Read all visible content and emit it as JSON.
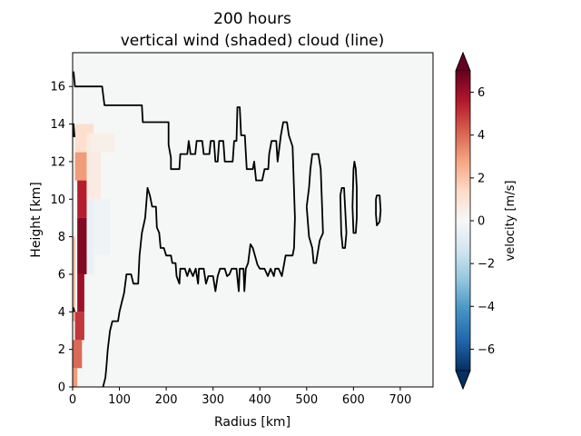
{
  "chart_data": {
    "type": "heatmap",
    "title": "200 hours",
    "subtitle": "vertical wind (shaded) cloud (line)",
    "xlabel": "Radius [km]",
    "ylabel": "Height [km]",
    "xlim": [
      0,
      770
    ],
    "ylim": [
      0,
      17.8
    ],
    "xticks": [
      0,
      100,
      200,
      300,
      400,
      500,
      600,
      700
    ],
    "yticks": [
      0,
      2,
      4,
      6,
      8,
      10,
      12,
      14,
      16
    ],
    "colorbar": {
      "label": "velocity [m/s]",
      "colormap": "RdBu_r",
      "range": [
        -7,
        7
      ],
      "ticks": [
        -6,
        -4,
        -2,
        0,
        2,
        4,
        6
      ],
      "tick_labels": [
        "−6",
        "−4",
        "−2",
        "0",
        "2",
        "4",
        "6"
      ],
      "extend": "both"
    },
    "shading_updraft": {
      "description_values_m_per_s": "strong updraft core near inner radius",
      "cells": [
        {
          "r": [
            0,
            10
          ],
          "z": [
            0.0,
            1.0
          ],
          "w": 3.0
        },
        {
          "r": [
            0,
            20
          ],
          "z": [
            1.0,
            2.5
          ],
          "w": 4.0
        },
        {
          "r": [
            5,
            25
          ],
          "z": [
            2.5,
            4.0
          ],
          "w": 5.0
        },
        {
          "r": [
            10,
            25
          ],
          "z": [
            4.0,
            6.0
          ],
          "w": 6.0
        },
        {
          "r": [
            10,
            30
          ],
          "z": [
            6.0,
            9.0
          ],
          "w": 6.5
        },
        {
          "r": [
            10,
            30
          ],
          "z": [
            9.0,
            11.0
          ],
          "w": 5.5
        },
        {
          "r": [
            5,
            35
          ],
          "z": [
            11.0,
            12.5
          ],
          "w": 3.0
        },
        {
          "r": [
            5,
            45
          ],
          "z": [
            12.5,
            14.0
          ],
          "w": 1.2
        },
        {
          "r": [
            30,
            60
          ],
          "z": [
            10.0,
            13.5
          ],
          "w": 0.6
        },
        {
          "r": [
            40,
            90
          ],
          "z": [
            12.5,
            13.5
          ],
          "w": 0.4
        },
        {
          "r": [
            0,
            5
          ],
          "z": [
            3.5,
            8.0
          ],
          "w": 2.5
        }
      ],
      "downdraft_cells": [
        {
          "r": [
            30,
            45
          ],
          "z": [
            6.0,
            10.5
          ],
          "w": -0.5
        },
        {
          "r": [
            45,
            80
          ],
          "z": [
            7.0,
            10.0
          ],
          "w": -0.3
        }
      ]
    },
    "cloud_contour_lines": [
      {
        "name": "outer cloud boundary",
        "points": [
          [
            2,
            16.8
          ],
          [
            5,
            16.0
          ],
          [
            63,
            16.0
          ],
          [
            68,
            15.0
          ],
          [
            148,
            15.0
          ],
          [
            150,
            14.1
          ],
          [
            205,
            14.1
          ],
          [
            205,
            12.9
          ],
          [
            210,
            12.2
          ],
          [
            210,
            11.6
          ],
          [
            228,
            11.6
          ],
          [
            230,
            12.4
          ],
          [
            245,
            12.4
          ],
          [
            248,
            13.1
          ],
          [
            252,
            12.4
          ],
          [
            262,
            12.4
          ],
          [
            265,
            13.1
          ],
          [
            277,
            13.1
          ],
          [
            280,
            12.4
          ],
          [
            292,
            12.4
          ],
          [
            295,
            13.1
          ],
          [
            302,
            13.1
          ],
          [
            305,
            12.0
          ],
          [
            310,
            12.0
          ],
          [
            313,
            13.1
          ],
          [
            322,
            13.1
          ],
          [
            325,
            12.0
          ],
          [
            342,
            12.0
          ],
          [
            345,
            13.1
          ],
          [
            350,
            13.1
          ],
          [
            352,
            14.9
          ],
          [
            357,
            14.9
          ],
          [
            360,
            13.4
          ],
          [
            368,
            13.4
          ],
          [
            372,
            11.6
          ],
          [
            385,
            11.6
          ],
          [
            388,
            12.0
          ],
          [
            392,
            11.0
          ],
          [
            405,
            11.0
          ],
          [
            410,
            11.6
          ],
          [
            418,
            11.6
          ],
          [
            420,
            12.4
          ],
          [
            425,
            13.1
          ],
          [
            435,
            13.1
          ],
          [
            438,
            12.0
          ],
          [
            445,
            13.4
          ],
          [
            450,
            14.1
          ],
          [
            458,
            14.1
          ],
          [
            462,
            13.4
          ],
          [
            470,
            12.8
          ],
          [
            475,
            9.0
          ],
          [
            473,
            7.4
          ],
          [
            470,
            7.0
          ],
          [
            455,
            7.0
          ],
          [
            450,
            6.3
          ],
          [
            447,
            5.9
          ],
          [
            440,
            6.3
          ],
          [
            433,
            6.3
          ],
          [
            430,
            5.9
          ],
          [
            423,
            6.3
          ],
          [
            417,
            5.9
          ],
          [
            410,
            6.3
          ],
          [
            400,
            6.3
          ],
          [
            395,
            6.5
          ],
          [
            385,
            7.4
          ],
          [
            380,
            7.6
          ],
          [
            375,
            6.6
          ],
          [
            370,
            6.3
          ],
          [
            367,
            5.1
          ],
          [
            365,
            6.3
          ],
          [
            357,
            6.3
          ],
          [
            355,
            5.1
          ],
          [
            350,
            6.3
          ],
          [
            340,
            6.3
          ],
          [
            335,
            6.0
          ],
          [
            330,
            5.9
          ],
          [
            325,
            6.3
          ],
          [
            315,
            6.3
          ],
          [
            310,
            5.9
          ],
          [
            305,
            5.1
          ],
          [
            300,
            5.9
          ],
          [
            290,
            5.9
          ],
          [
            285,
            5.5
          ],
          [
            280,
            6.3
          ],
          [
            270,
            6.3
          ],
          [
            268,
            5.5
          ],
          [
            263,
            6.3
          ],
          [
            257,
            5.9
          ],
          [
            250,
            6.3
          ],
          [
            245,
            5.9
          ],
          [
            240,
            6.3
          ],
          [
            230,
            6.3
          ],
          [
            228,
            5.5
          ],
          [
            222,
            5.9
          ],
          [
            220,
            6.6
          ],
          [
            213,
            6.6
          ],
          [
            210,
            7.0
          ],
          [
            200,
            7.0
          ],
          [
            195,
            7.4
          ],
          [
            188,
            7.4
          ],
          [
            185,
            8.2
          ],
          [
            180,
            8.5
          ],
          [
            178,
            9.6
          ],
          [
            170,
            9.6
          ],
          [
            165,
            10.2
          ],
          [
            160,
            10.6
          ],
          [
            157,
            9.6
          ],
          [
            155,
            9.0
          ],
          [
            148,
            8.2
          ],
          [
            143,
            7.0
          ],
          [
            140,
            5.5
          ],
          [
            130,
            5.5
          ],
          [
            125,
            6.0
          ],
          [
            115,
            6.0
          ],
          [
            110,
            5.0
          ],
          [
            105,
            4.5
          ],
          [
            100,
            4.0
          ],
          [
            97,
            3.5
          ],
          [
            85,
            3.5
          ],
          [
            80,
            3.0
          ],
          [
            75,
            2.0
          ],
          [
            72,
            1.0
          ],
          [
            70,
            0.5
          ],
          [
            65,
            0.0
          ]
        ]
      },
      {
        "name": "right cloud segment",
        "points": [
          [
            500,
            9.6
          ],
          [
            505,
            10.6
          ],
          [
            508,
            11.6
          ],
          [
            512,
            12.4
          ],
          [
            525,
            12.4
          ],
          [
            530,
            11.6
          ],
          [
            533,
            9.6
          ],
          [
            535,
            8.2
          ],
          [
            528,
            7.8
          ],
          [
            520,
            6.6
          ],
          [
            515,
            6.6
          ],
          [
            512,
            7.4
          ],
          [
            505,
            8.0
          ],
          [
            500,
            9.6
          ]
        ]
      },
      {
        "name": "small cloud loop",
        "points": [
          [
            572,
            10.2
          ],
          [
            575,
            10.6
          ],
          [
            580,
            10.6
          ],
          [
            582,
            9.6
          ],
          [
            585,
            8.2
          ],
          [
            582,
            7.4
          ],
          [
            577,
            7.4
          ],
          [
            574,
            8.2
          ],
          [
            572,
            10.2
          ]
        ]
      },
      {
        "name": "far right loop",
        "points": [
          [
            600,
            11.6
          ],
          [
            602,
            12.0
          ],
          [
            605,
            11.6
          ],
          [
            607,
            10.6
          ],
          [
            607,
            9.0
          ],
          [
            605,
            8.2
          ],
          [
            600,
            8.2
          ],
          [
            598,
            9.6
          ],
          [
            600,
            11.6
          ]
        ]
      },
      {
        "name": "small far loop",
        "points": [
          [
            648,
            10.0
          ],
          [
            650,
            10.2
          ],
          [
            656,
            10.2
          ],
          [
            658,
            9.4
          ],
          [
            656,
            8.8
          ],
          [
            650,
            8.6
          ],
          [
            648,
            9.2
          ],
          [
            648,
            10.0
          ]
        ]
      },
      {
        "name": "left edge inner",
        "points": [
          [
            0,
            13.3
          ],
          [
            2,
            14.0
          ],
          [
            4,
            13.3
          ]
        ]
      },
      {
        "name": "left edge low",
        "points": [
          [
            0,
            4.0
          ],
          [
            2,
            4.2
          ],
          [
            4,
            4.0
          ]
        ]
      }
    ]
  }
}
